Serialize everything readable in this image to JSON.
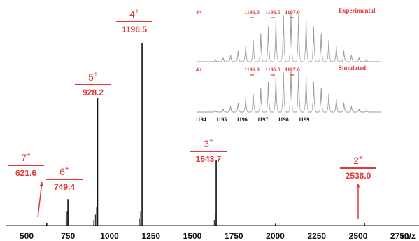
{
  "chart_data": {
    "type": "line",
    "title": "",
    "xlabel": "m/z",
    "ylabel": "",
    "xlim": [
      430,
      2960
    ],
    "ylim": [
      0,
      1
    ],
    "x_ticks": [
      "500",
      "750",
      "1000",
      "1250",
      "1500",
      "1750",
      "2000",
      "2250",
      "2500",
      "2750"
    ],
    "peaks": [
      {
        "mz": 621.6,
        "rel": 0.012,
        "charge": "7",
        "label": "621.6"
      },
      {
        "mz": 749.4,
        "rel": 0.145,
        "charge": "6",
        "label": "749.4"
      },
      {
        "mz": 928.2,
        "rel": 0.7,
        "charge": "5",
        "label": "928.2"
      },
      {
        "mz": 1196.5,
        "rel": 1.0,
        "charge": "4",
        "label": "1196.5"
      },
      {
        "mz": 1643.7,
        "rel": 0.36,
        "charge": "3",
        "label": "1643.7"
      },
      {
        "mz": 2538.0,
        "rel": 0.015,
        "charge": "2",
        "label": "2538.0"
      }
    ],
    "minor_peaks": [
      {
        "mz": 738,
        "rel": 0.04
      },
      {
        "mz": 744,
        "rel": 0.08
      },
      {
        "mz": 905,
        "rel": 0.03
      },
      {
        "mz": 915,
        "rel": 0.06
      },
      {
        "mz": 922,
        "rel": 0.1
      },
      {
        "mz": 1180,
        "rel": 0.04
      },
      {
        "mz": 1188,
        "rel": 0.08
      },
      {
        "mz": 1632,
        "rel": 0.03
      },
      {
        "mz": 1638,
        "rel": 0.06
      },
      {
        "mz": 2000,
        "rel": 0.01
      }
    ],
    "insets": [
      {
        "charge_label": "4+",
        "title": "Experimental",
        "peak_labels": [
          "1196.0",
          "1196.5",
          "1197.0"
        ],
        "x_ticks": [],
        "values": [
          0.04,
          0.08,
          0.14,
          0.22,
          0.32,
          0.44,
          0.58,
          0.72,
          0.85,
          0.94,
          1.0,
          0.96,
          0.86,
          0.72,
          0.58,
          0.44,
          0.32,
          0.22,
          0.14,
          0.08,
          0.04
        ]
      },
      {
        "charge_label": "4+",
        "title": "Simulated",
        "peak_labels": [
          "1196.0",
          "1196.5",
          "1197.0"
        ],
        "x_ticks": [
          "1194",
          "1195",
          "1196",
          "1197",
          "1198",
          "1199"
        ],
        "values": [
          0.04,
          0.08,
          0.14,
          0.22,
          0.32,
          0.44,
          0.58,
          0.72,
          0.85,
          0.94,
          1.0,
          0.96,
          0.86,
          0.72,
          0.58,
          0.44,
          0.32,
          0.22,
          0.14,
          0.08,
          0.04
        ]
      }
    ]
  },
  "colors": {
    "annotation": "#e0383b",
    "spectrum": "#111111",
    "inset_trace": "#9a9a9a"
  }
}
